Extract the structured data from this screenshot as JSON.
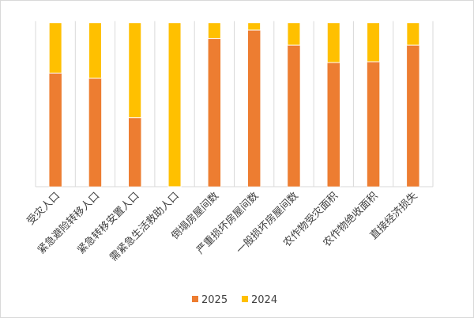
{
  "chart_data": {
    "type": "bar",
    "stacked": "percent",
    "title": "",
    "xlabel": "",
    "ylabel": "",
    "ylim": [
      0,
      100
    ],
    "grid": "vertical category separators",
    "legend_position": "bottom",
    "categories": [
      "受灾人口",
      "紧急避险转移人口",
      "紧急转移安置人口",
      "需紧急生活救助人口",
      "倒塌房屋间数",
      "严重损坏房屋间数",
      "一般损坏房屋间数",
      "农作物受灾面积",
      "农作物绝收面积",
      "直接经济损失"
    ],
    "series": [
      {
        "name": "2025",
        "color": "#ED7D31",
        "values": [
          69.3,
          66.1,
          42.1,
          0,
          90.4,
          95.5,
          86.3,
          75.7,
          76.2,
          86.3
        ]
      },
      {
        "name": "2024",
        "color": "#FFC000",
        "values": [
          30.7,
          33.9,
          57.9,
          100,
          9.6,
          4.5,
          13.7,
          24.3,
          23.8,
          13.7
        ]
      }
    ]
  }
}
